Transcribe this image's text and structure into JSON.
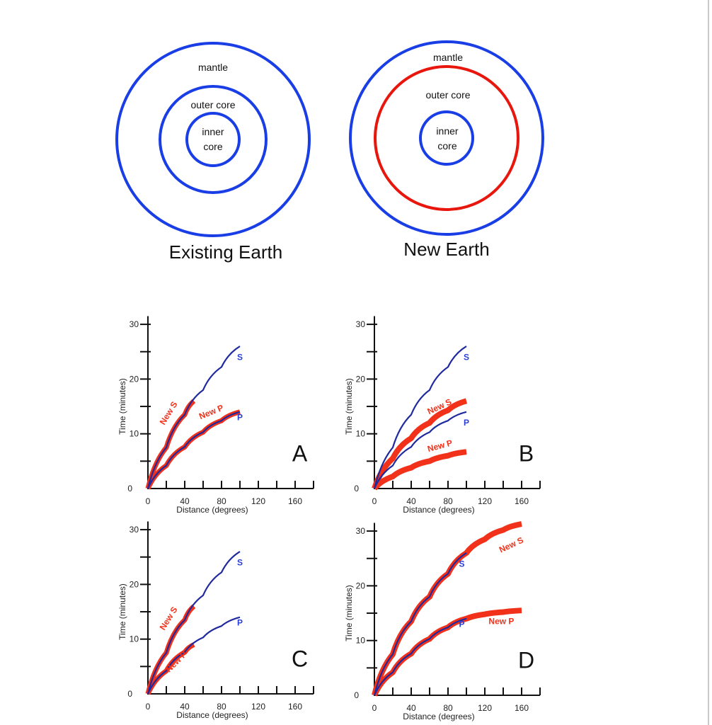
{
  "colors": {
    "blue": "#1a3ee6",
    "red": "#e8160c",
    "curve_blue": "#1f2a9e",
    "curve_red": "#f2311a",
    "axis": "#111111",
    "tick_label": "#222222"
  },
  "earths": [
    {
      "title": "Existing Earth",
      "layers": {
        "mantle": "mantle",
        "outer_core": "outer core",
        "inner_core_line1": "inner",
        "inner_core_line2": "core"
      },
      "ring_colors": [
        "#1a3ee6",
        "#1a3ee6",
        "#1a3ee6"
      ]
    },
    {
      "title": "New Earth",
      "layers": {
        "mantle": "mantle",
        "outer_core": "outer core",
        "inner_core_line1": "inner",
        "inner_core_line2": "core"
      },
      "ring_colors": [
        "#1a3ee6",
        "#e8160c",
        "#1a3ee6"
      ]
    }
  ],
  "chart_data": [
    {
      "type": "line",
      "panel": "A",
      "xlabel": "Distance (degrees)",
      "ylabel": "Time (minutes)",
      "xlim": [
        0,
        180
      ],
      "ylim": [
        0,
        30
      ],
      "xticks": [
        0,
        40,
        80,
        120,
        160
      ],
      "yticks": [
        0,
        10,
        20,
        30
      ],
      "series": [
        {
          "name": "S",
          "x": [
            0,
            20,
            40,
            60,
            80,
            100
          ],
          "values": [
            0,
            7.5,
            13.5,
            18,
            22.2,
            26
          ],
          "style": "blue"
        },
        {
          "name": "P",
          "x": [
            0,
            20,
            40,
            60,
            80,
            100
          ],
          "values": [
            0,
            4.2,
            7.6,
            10.3,
            12.4,
            14
          ],
          "style": "blue"
        },
        {
          "name": "New S",
          "x": [
            0,
            20,
            40,
            50
          ],
          "values": [
            0,
            7.5,
            13.5,
            16
          ],
          "style": "red"
        },
        {
          "name": "New P",
          "x": [
            0,
            20,
            40,
            60,
            80,
            100
          ],
          "values": [
            0,
            4.2,
            7.6,
            10.3,
            12.4,
            14
          ],
          "style": "red"
        }
      ]
    },
    {
      "type": "line",
      "panel": "B",
      "xlabel": "Distance (degrees)",
      "ylabel": "Time (minutes)",
      "xlim": [
        0,
        180
      ],
      "ylim": [
        0,
        30
      ],
      "xticks": [
        0,
        40,
        80,
        120,
        160
      ],
      "yticks": [
        0,
        10,
        20,
        30
      ],
      "series": [
        {
          "name": "S",
          "x": [
            0,
            20,
            40,
            60,
            80,
            100
          ],
          "values": [
            0,
            7.5,
            13.5,
            18,
            22.2,
            26
          ],
          "style": "blue"
        },
        {
          "name": "P",
          "x": [
            0,
            20,
            40,
            60,
            80,
            100
          ],
          "values": [
            0,
            4.2,
            7.6,
            10.3,
            12.4,
            14
          ],
          "style": "blue"
        },
        {
          "name": "New S",
          "x": [
            0,
            20,
            40,
            60,
            80,
            100
          ],
          "values": [
            0,
            5.5,
            9.2,
            12,
            14.3,
            16
          ],
          "style": "red"
        },
        {
          "name": "New P",
          "x": [
            0,
            20,
            40,
            60,
            80,
            100
          ],
          "values": [
            0,
            2.2,
            3.8,
            5,
            6,
            6.7
          ],
          "style": "red"
        }
      ]
    },
    {
      "type": "line",
      "panel": "C",
      "xlabel": "Distance (degrees)",
      "ylabel": "Time (minutes)",
      "xlim": [
        0,
        180
      ],
      "ylim": [
        0,
        30
      ],
      "xticks": [
        0,
        40,
        80,
        120,
        160
      ],
      "yticks": [
        0,
        10,
        20,
        30
      ],
      "series": [
        {
          "name": "S",
          "x": [
            0,
            20,
            40,
            60,
            80,
            100
          ],
          "values": [
            0,
            7.5,
            13.5,
            18,
            22.2,
            26
          ],
          "style": "blue"
        },
        {
          "name": "P",
          "x": [
            0,
            20,
            40,
            60,
            80,
            100
          ],
          "values": [
            0,
            4.2,
            7.6,
            10.3,
            12.4,
            14
          ],
          "style": "blue"
        },
        {
          "name": "New S",
          "x": [
            0,
            20,
            40,
            50
          ],
          "values": [
            0,
            7.5,
            13.5,
            16
          ],
          "style": "red"
        },
        {
          "name": "New P",
          "x": [
            0,
            20,
            40,
            50
          ],
          "values": [
            0,
            4.2,
            7.6,
            9
          ],
          "style": "red"
        }
      ]
    },
    {
      "type": "line",
      "panel": "D",
      "xlabel": "Distance (degrees)",
      "ylabel": "Time (minutes)",
      "xlim": [
        0,
        180
      ],
      "ylim": [
        0,
        30
      ],
      "xticks": [
        0,
        40,
        80,
        120,
        160
      ],
      "yticks": [
        0,
        10,
        20,
        30
      ],
      "series": [
        {
          "name": "S",
          "x": [
            0,
            20,
            40,
            60,
            80,
            100
          ],
          "values": [
            0,
            7.5,
            13.5,
            18,
            22.2,
            26
          ],
          "style": "blue"
        },
        {
          "name": "P",
          "x": [
            0,
            20,
            40,
            60,
            80,
            100
          ],
          "values": [
            0,
            4.2,
            7.6,
            10.3,
            12.4,
            14
          ],
          "style": "blue"
        },
        {
          "name": "New S",
          "x": [
            0,
            20,
            40,
            60,
            80,
            100,
            120,
            140,
            160
          ],
          "values": [
            0,
            7.5,
            13.5,
            18,
            22.2,
            26,
            28.5,
            30.2,
            31.3
          ],
          "style": "red"
        },
        {
          "name": "New P",
          "x": [
            0,
            20,
            40,
            60,
            80,
            100,
            120,
            140,
            160
          ],
          "values": [
            0,
            4.2,
            7.6,
            10.3,
            12.4,
            14,
            14.8,
            15.2,
            15.5
          ],
          "style": "red"
        }
      ]
    }
  ],
  "panels": {
    "A": {
      "letter": "A"
    },
    "B": {
      "letter": "B"
    },
    "C": {
      "letter": "C"
    },
    "D": {
      "letter": "D"
    }
  }
}
